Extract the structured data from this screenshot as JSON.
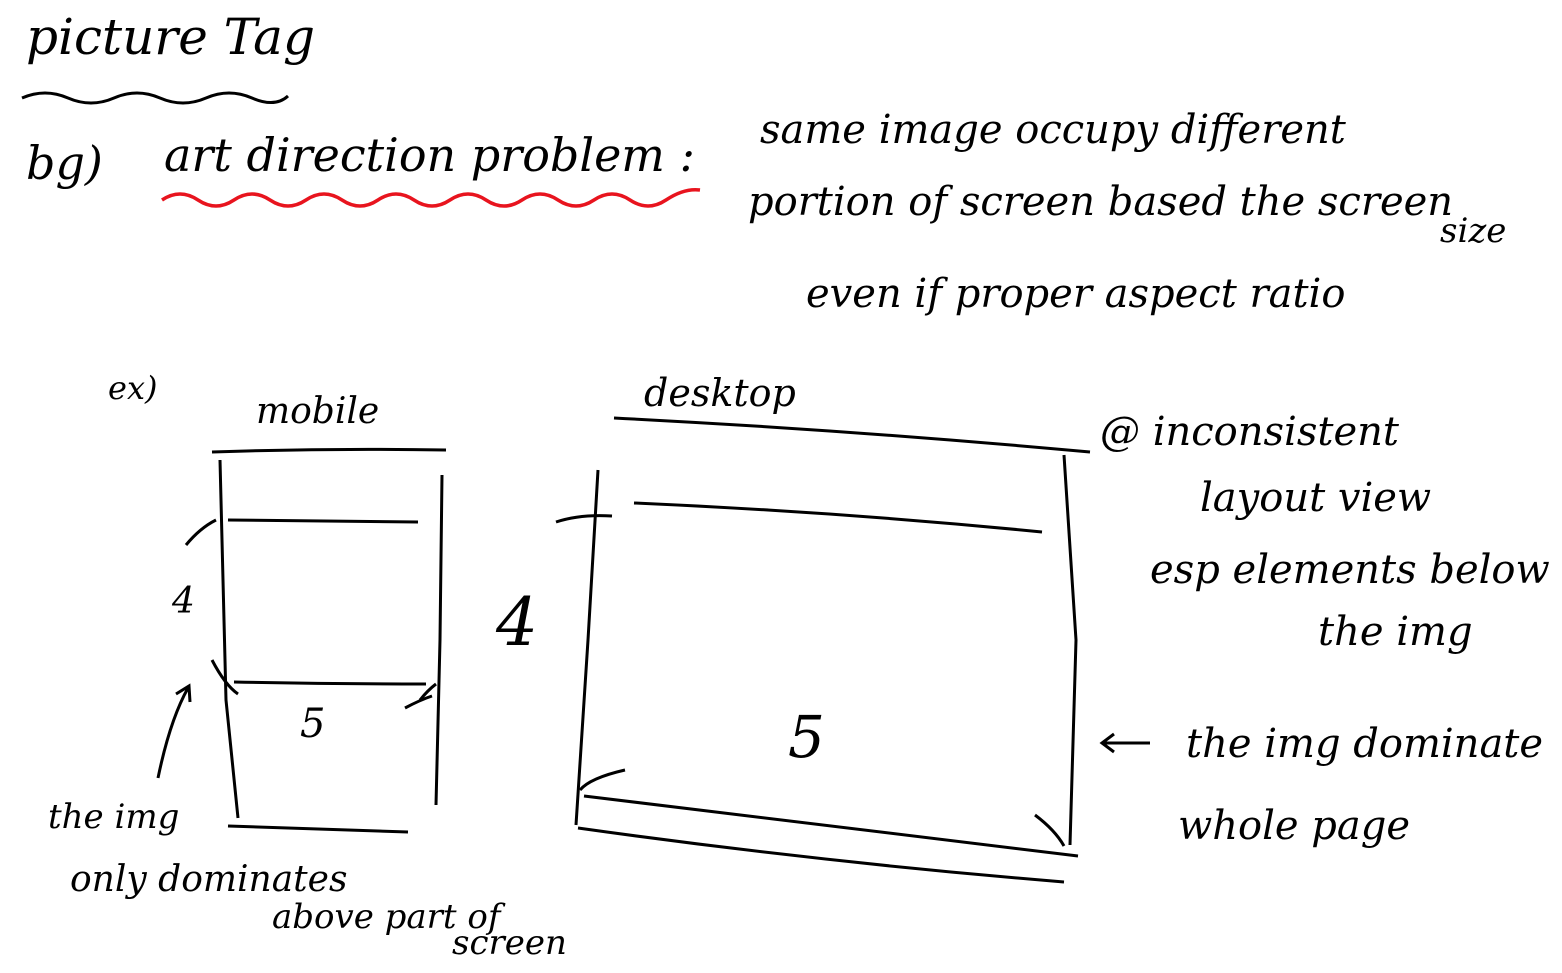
{
  "heading": "picture Tag",
  "bg": {
    "label": "bg)",
    "term": "art direction problem :",
    "definition": [
      "same image occupy different",
      "portion of screen based the screen",
      "size",
      "even if proper aspect ratio"
    ]
  },
  "example": {
    "label": "ex)",
    "mobile": {
      "title": "mobile",
      "section_top": "4",
      "section_bottom": "5",
      "caption": [
        "the img",
        "only dominates",
        "above part of",
        "screen"
      ]
    },
    "desktop": {
      "title": "desktop",
      "section_top": "4",
      "section_bottom": "5"
    },
    "notes": {
      "inconsistent": [
        "@ inconsistent",
        "layout view",
        "esp elements below",
        "the img"
      ],
      "dominate": [
        "the img dominate",
        "whole page"
      ]
    }
  },
  "colors": {
    "ink": "#000000",
    "highlight": "#e8141e"
  }
}
